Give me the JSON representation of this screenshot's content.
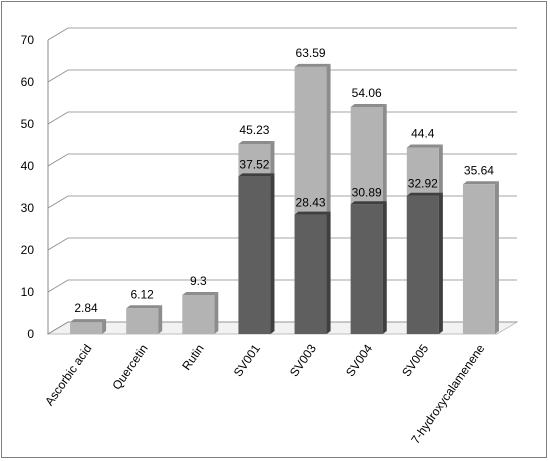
{
  "chart_data": {
    "type": "bar",
    "categories": [
      "Ascorbic acid",
      "Quercetin",
      "Rutin",
      "SV001",
      "SV003",
      "SV004",
      "SV005",
      "7-hydroxycalamenene"
    ],
    "series": [
      {
        "values": [
          2.84,
          6.12,
          9.3,
          45.23,
          63.59,
          54.06,
          44.4,
          35.64
        ],
        "color": "#b3b3b3"
      },
      {
        "values": [
          null,
          null,
          null,
          37.52,
          28.43,
          30.89,
          32.92,
          null
        ],
        "color": "#5f5f5f"
      }
    ],
    "ylim": [
      0,
      70
    ],
    "yticks": [
      0,
      10,
      20,
      30,
      40,
      50,
      60,
      70
    ],
    "grid": true,
    "three_d": true,
    "legend": "none",
    "colors": {
      "light_bar": "#b3b3b3",
      "light_side": "#8c8c8c",
      "dark_bar": "#5f5f5f",
      "dark_side": "#3f3f3f",
      "grid": "#888888",
      "floor": "#f2f2f2"
    }
  }
}
